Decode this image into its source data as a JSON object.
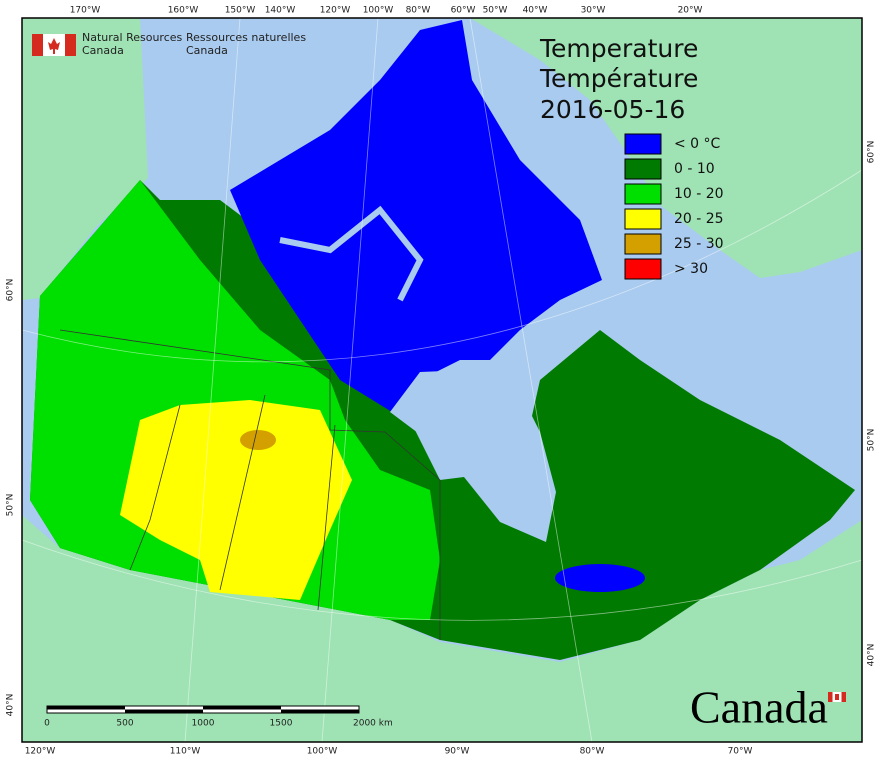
{
  "header": {
    "agency_en": [
      "Natural Resources",
      "Canada"
    ],
    "agency_fr": [
      "Ressources naturelles",
      "Canada"
    ]
  },
  "title": [
    "Temperature",
    "Température"
  ],
  "date": "2016-05-16",
  "legend": [
    {
      "label": "< 0 °C",
      "color": "#0000ff"
    },
    {
      "label": "0 - 10",
      "color": "#007a00"
    },
    {
      "label": "10 - 20",
      "color": "#00e000"
    },
    {
      "label": "20 - 25",
      "color": "#ffff00"
    },
    {
      "label": "25 - 30",
      "color": "#d4a000"
    },
    {
      "label": "> 30",
      "color": "#ff0000"
    }
  ],
  "graticule": {
    "top": [
      "170°W",
      "160°W",
      "150°W",
      "140°W",
      "120°W",
      "100°W",
      "80°W",
      "60°W",
      "50°W",
      "40°W",
      "30°W",
      "20°W"
    ],
    "bottom": [
      "120°W",
      "110°W",
      "100°W",
      "90°W",
      "80°W",
      "70°W"
    ],
    "left": [
      "60°N",
      "50°N",
      "40°N"
    ],
    "right": [
      "60°N",
      "50°N",
      "40°N"
    ]
  },
  "scale_bar": [
    "0",
    "500",
    "1000",
    "1500",
    "2000 km"
  ],
  "wordmark": "Canada"
}
